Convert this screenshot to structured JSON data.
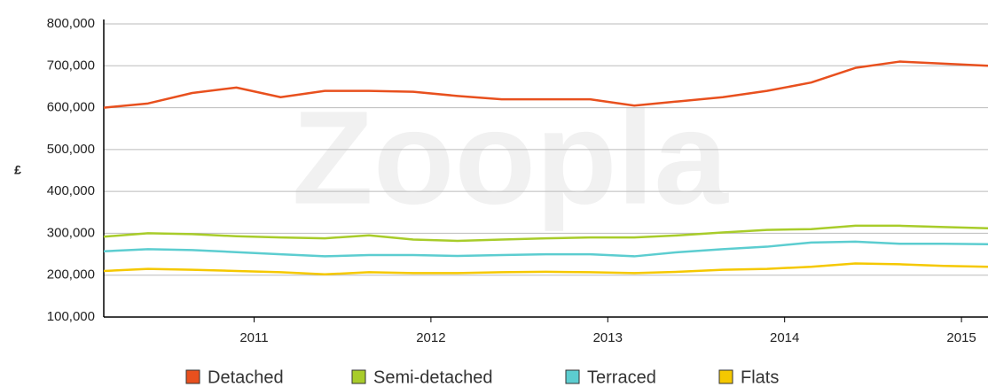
{
  "chart_data": {
    "type": "line",
    "watermark": "Zoopla",
    "y_label": "£",
    "x": [
      2010.15,
      2010.4,
      2010.65,
      2010.9,
      2011.15,
      2011.4,
      2011.65,
      2011.9,
      2012.15,
      2012.4,
      2012.65,
      2012.9,
      2013.15,
      2013.4,
      2013.65,
      2013.9,
      2014.15,
      2014.4,
      2014.65,
      2014.9,
      2015.15
    ],
    "series": [
      {
        "name": "Detached",
        "color": "#e8501e",
        "values": [
          600000,
          610000,
          635000,
          648000,
          625000,
          640000,
          640000,
          638000,
          628000,
          620000,
          620000,
          620000,
          605000,
          615000,
          625000,
          640000,
          660000,
          695000,
          710000,
          705000,
          700000
        ]
      },
      {
        "name": "Semi-detached",
        "color": "#a8cc2a",
        "values": [
          292000,
          300000,
          298000,
          293000,
          290000,
          288000,
          295000,
          285000,
          282000,
          285000,
          288000,
          290000,
          290000,
          295000,
          302000,
          308000,
          310000,
          318000,
          318000,
          315000,
          312000
        ]
      },
      {
        "name": "Terraced",
        "color": "#5ccdd0",
        "values": [
          257000,
          262000,
          260000,
          255000,
          250000,
          245000,
          248000,
          248000,
          246000,
          248000,
          250000,
          250000,
          245000,
          255000,
          262000,
          268000,
          278000,
          280000,
          275000,
          275000,
          274000
        ]
      },
      {
        "name": "Flats",
        "color": "#f5c800",
        "values": [
          210000,
          215000,
          213000,
          210000,
          207000,
          202000,
          207000,
          205000,
          205000,
          207000,
          208000,
          207000,
          205000,
          208000,
          213000,
          215000,
          220000,
          228000,
          226000,
          222000,
          220000
        ]
      }
    ],
    "xlim": [
      2010.15,
      2015.15
    ],
    "xticks": [
      2011,
      2012,
      2013,
      2014,
      2015
    ],
    "ylim": [
      100000,
      800000
    ],
    "yticks": [
      {
        "value": 100000,
        "label": "100,000"
      },
      {
        "value": 200000,
        "label": "200,000"
      },
      {
        "value": 300000,
        "label": "300,000"
      },
      {
        "value": 400000,
        "label": "400,000"
      },
      {
        "value": 500000,
        "label": "500,000"
      },
      {
        "value": 600000,
        "label": "600,000"
      },
      {
        "value": 700000,
        "label": "700,000"
      },
      {
        "value": 800000,
        "label": "800,000"
      }
    ],
    "grid": true,
    "legend": "bottom"
  }
}
